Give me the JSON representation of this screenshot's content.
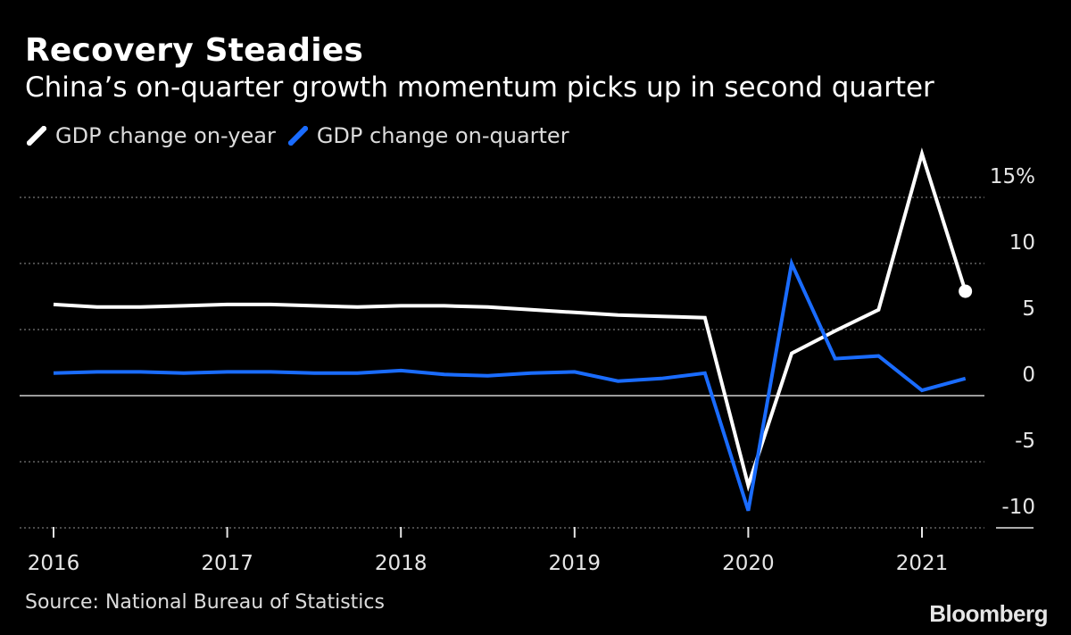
{
  "header": {
    "title": "Recovery Steadies",
    "subtitle": "China’s on-quarter growth momentum picks up in second quarter"
  },
  "footer": {
    "source": "Source: National Bureau of Statistics",
    "brand": "Bloomberg"
  },
  "colors": {
    "background": "#000000",
    "series_yoy": "#ffffff",
    "series_qoq": "#1a6cff",
    "grid": "#777777"
  },
  "chart_data": {
    "type": "line",
    "title": "Recovery Steadies",
    "subtitle": "China’s on-quarter growth momentum picks up in second quarter",
    "x": [
      "2016-Q1",
      "2016-Q2",
      "2016-Q3",
      "2016-Q4",
      "2017-Q1",
      "2017-Q2",
      "2017-Q3",
      "2017-Q4",
      "2018-Q1",
      "2018-Q2",
      "2018-Q3",
      "2018-Q4",
      "2019-Q1",
      "2019-Q2",
      "2019-Q3",
      "2019-Q4",
      "2020-Q1",
      "2020-Q2",
      "2020-Q3",
      "2020-Q4",
      "2021-Q1",
      "2021-Q2"
    ],
    "x_tick_labels": [
      "2016",
      "2017",
      "2018",
      "2019",
      "2020",
      "2021"
    ],
    "y_ticks": [
      15,
      10,
      5,
      0,
      -5,
      -10
    ],
    "y_tick_labels": [
      "15%",
      "10",
      "5",
      "0",
      "-5",
      "-10"
    ],
    "ylim": [
      -10.3,
      15.5
    ],
    "grid": true,
    "legend_position": "top-left",
    "y_axis_side": "right",
    "series": [
      {
        "name": "GDP change on-year",
        "color": "#ffffff",
        "values": [
          6.9,
          6.7,
          6.7,
          6.8,
          6.9,
          6.9,
          6.8,
          6.7,
          6.8,
          6.8,
          6.7,
          6.5,
          6.3,
          6.1,
          6.0,
          5.9,
          -6.8,
          3.2,
          4.9,
          6.5,
          18.3,
          7.9
        ],
        "end_marker": true
      },
      {
        "name": "GDP change on-quarter",
        "color": "#1a6cff",
        "values": [
          1.7,
          1.8,
          1.8,
          1.7,
          1.8,
          1.8,
          1.7,
          1.7,
          1.9,
          1.6,
          1.5,
          1.7,
          1.8,
          1.1,
          1.3,
          1.7,
          -8.7,
          10.0,
          2.8,
          3.0,
          0.4,
          1.3
        ]
      }
    ]
  }
}
